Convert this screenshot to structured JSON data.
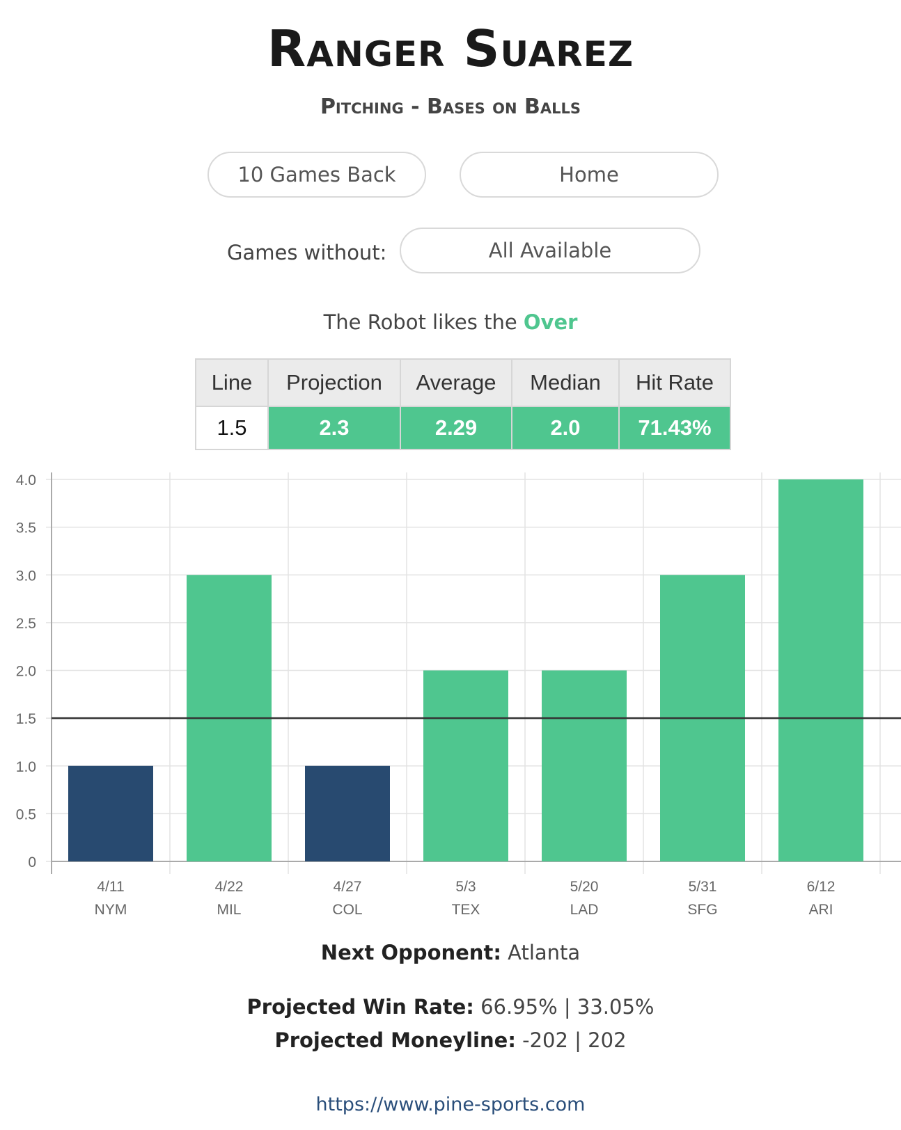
{
  "header": {
    "player_name": "Ranger Suarez",
    "subtitle": "Pitching - Bases on Balls"
  },
  "controls": {
    "games_back": "10 Games Back",
    "location": "Home",
    "games_without_label": "Games without:",
    "games_without_value": "All Available"
  },
  "robot": {
    "prefix": "The Robot likes the",
    "pick": "Over"
  },
  "stats_table": {
    "headers": [
      "Line",
      "Projection",
      "Average",
      "Median",
      "Hit Rate"
    ],
    "values": [
      "1.5",
      "2.3",
      "2.29",
      "2.0",
      "71.43%"
    ]
  },
  "colors": {
    "over": "#4fc68f",
    "under": "#284a70",
    "line": "#333333"
  },
  "chart_data": {
    "type": "bar",
    "categories": [
      "4/11",
      "4/22",
      "4/27",
      "5/3",
      "5/20",
      "5/31",
      "6/12"
    ],
    "opponents": [
      "NYM",
      "MIL",
      "COL",
      "TEX",
      "LAD",
      "SFG",
      "ARI"
    ],
    "values": [
      1,
      3,
      1,
      2,
      2,
      3,
      4
    ],
    "reference_line": 1.5,
    "ylim": [
      0,
      4
    ],
    "yticks": [
      "0",
      "0.5",
      "1.0",
      "1.5",
      "2.0",
      "2.5",
      "3.0",
      "3.5",
      "4.0"
    ],
    "grid": true,
    "title": "",
    "xlabel": "",
    "ylabel": ""
  },
  "footer": {
    "next_opponent_label": "Next Opponent:",
    "next_opponent": "Atlanta",
    "win_rate_label": "Projected Win Rate:",
    "win_rate": "66.95% | 33.05%",
    "moneyline_label": "Projected Moneyline:",
    "moneyline": "-202 | 202",
    "url": "https://www.pine-sports.com"
  }
}
